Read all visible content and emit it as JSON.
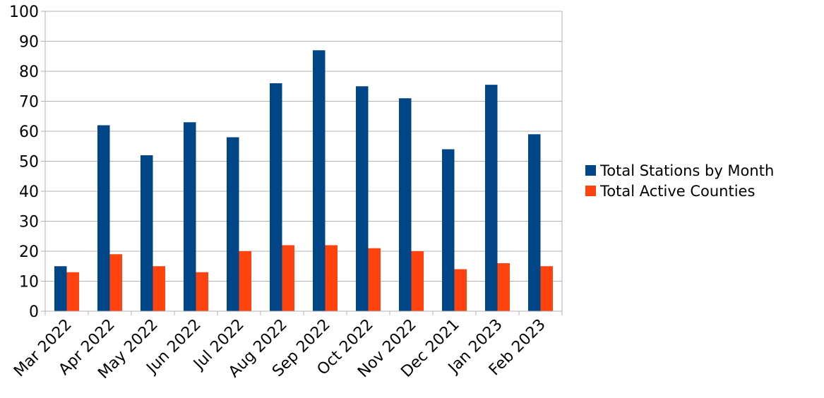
{
  "chart_data": {
    "type": "bar",
    "title": "",
    "xlabel": "",
    "ylabel": "",
    "ylim": [
      0,
      100
    ],
    "yticks": [
      0,
      10,
      20,
      30,
      40,
      50,
      60,
      70,
      80,
      90,
      100
    ],
    "grid": true,
    "legend_position": "right",
    "categories": [
      "Mar 2022",
      "Apr 2022",
      "May 2022",
      "Jun 2022",
      "Jul 2022",
      "Aug 2022",
      "Sep 2022",
      "Oct 2022",
      "Nov 2022",
      "Dec 2021",
      "Jan 2023",
      "Feb 2023"
    ],
    "series": [
      {
        "name": "Total Stations by Month",
        "color": "#004586",
        "values": [
          15,
          62,
          52,
          63,
          58,
          76,
          87,
          75,
          71,
          54,
          75.5,
          59
        ]
      },
      {
        "name": "Total Active Counties",
        "color": "#FF420E",
        "values": [
          13,
          19,
          15,
          13,
          20,
          22,
          22,
          21,
          20,
          14,
          16,
          15
        ]
      }
    ]
  }
}
